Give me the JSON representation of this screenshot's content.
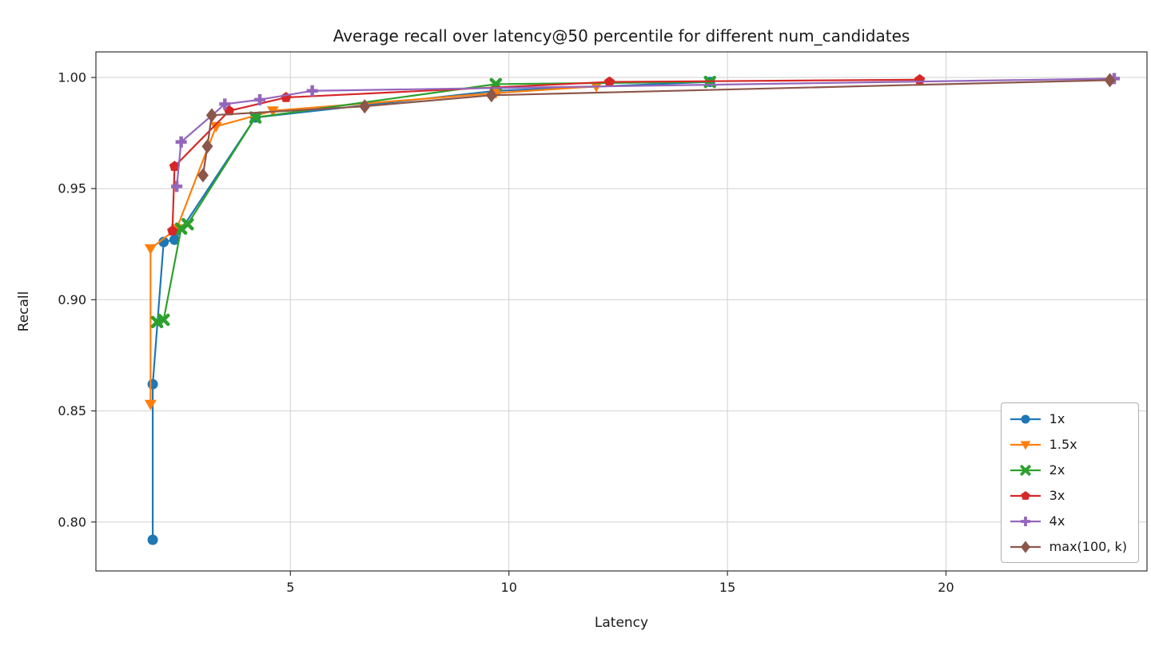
{
  "chart_data": {
    "type": "line",
    "title": "Average recall over latency@50 percentile for different num_candidates",
    "xlabel": "Latency",
    "ylabel": "Recall",
    "xlim": [
      0.55,
      24.6
    ],
    "ylim": [
      0.778,
      1.0115
    ],
    "xticks": [
      5,
      10,
      15,
      20
    ],
    "xtick_labels": [
      "5",
      "10",
      "15",
      "20"
    ],
    "yticks": [
      0.8,
      0.85,
      0.9,
      0.95,
      1.0
    ],
    "ytick_labels": [
      "0.80",
      "0.85",
      "0.90",
      "0.95",
      "1.00"
    ],
    "grid": true,
    "legend_position": "lower right",
    "series": [
      {
        "name": "1x",
        "color": "#1f77b4",
        "marker": "circle",
        "points": [
          [
            1.85,
            0.792
          ],
          [
            1.85,
            0.862
          ],
          [
            2.1,
            0.926
          ],
          [
            2.35,
            0.927
          ],
          [
            4.2,
            0.982
          ],
          [
            9.7,
            0.994
          ],
          [
            14.6,
            0.998
          ]
        ]
      },
      {
        "name": "1.5x",
        "color": "#ff7f0e",
        "marker": "triangle-down",
        "points": [
          [
            1.8,
            0.853
          ],
          [
            1.8,
            0.923
          ],
          [
            2.4,
            0.932
          ],
          [
            3.3,
            0.978
          ],
          [
            4.6,
            0.985
          ],
          [
            9.7,
            0.993
          ],
          [
            12.0,
            0.996
          ]
        ]
      },
      {
        "name": "2x",
        "color": "#2ca02c",
        "marker": "x",
        "points": [
          [
            1.95,
            0.89
          ],
          [
            2.1,
            0.891
          ],
          [
            2.5,
            0.932
          ],
          [
            2.65,
            0.934
          ],
          [
            4.2,
            0.982
          ],
          [
            9.7,
            0.997
          ],
          [
            14.6,
            0.998
          ]
        ]
      },
      {
        "name": "3x",
        "color": "#d62728",
        "marker": "pentagon",
        "points": [
          [
            2.3,
            0.931
          ],
          [
            2.35,
            0.96
          ],
          [
            3.6,
            0.985
          ],
          [
            4.9,
            0.991
          ],
          [
            12.3,
            0.998
          ],
          [
            19.4,
            0.999
          ]
        ]
      },
      {
        "name": "4x",
        "color": "#9467bd",
        "marker": "plus",
        "points": [
          [
            2.4,
            0.951
          ],
          [
            2.5,
            0.971
          ],
          [
            3.5,
            0.988
          ],
          [
            4.3,
            0.99
          ],
          [
            5.5,
            0.994
          ],
          [
            23.85,
            0.9995
          ]
        ]
      },
      {
        "name": "max(100, k)",
        "color": "#8c564b",
        "marker": "diamond",
        "points": [
          [
            3.0,
            0.956
          ],
          [
            3.1,
            0.969
          ],
          [
            3.2,
            0.983
          ],
          [
            6.7,
            0.987
          ],
          [
            9.6,
            0.992
          ],
          [
            23.75,
            0.9988
          ]
        ]
      }
    ]
  }
}
